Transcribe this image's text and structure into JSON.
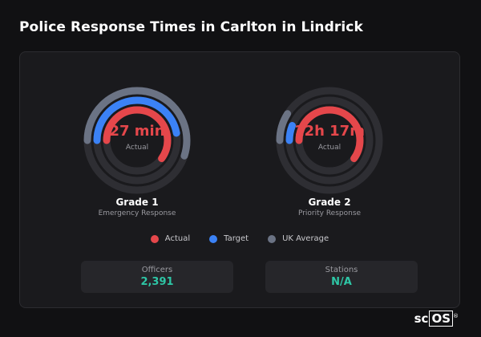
{
  "page": {
    "title": "Police Response Times in Carlton in Lindrick"
  },
  "colors": {
    "actual": "#e5474b",
    "target": "#3b82f6",
    "uk_average": "#6b7384",
    "track": "#2e2e33"
  },
  "gauges": [
    {
      "value": "27 min",
      "caption": "Actual",
      "title": "Grade 1",
      "subtitle": "Emergency Response",
      "fractions": {
        "uk_average": 0.55,
        "target": 0.47,
        "actual": 0.6
      }
    },
    {
      "value": "12h 17m",
      "caption": "Actual",
      "title": "Grade 2",
      "subtitle": "Priority Response",
      "fractions": {
        "uk_average": 0.09,
        "target": 0.06,
        "actual": 0.6
      }
    }
  ],
  "legend": [
    {
      "label": "Actual",
      "color": "#e5474b"
    },
    {
      "label": "Target",
      "color": "#3b82f6"
    },
    {
      "label": "UK Average",
      "color": "#6b7384"
    }
  ],
  "stats": [
    {
      "label": "Officers",
      "value": "2,391"
    },
    {
      "label": "Stations",
      "value": "N/A"
    }
  ],
  "brand": {
    "prefix": "sc",
    "boxed": "OS",
    "mark": "®"
  }
}
